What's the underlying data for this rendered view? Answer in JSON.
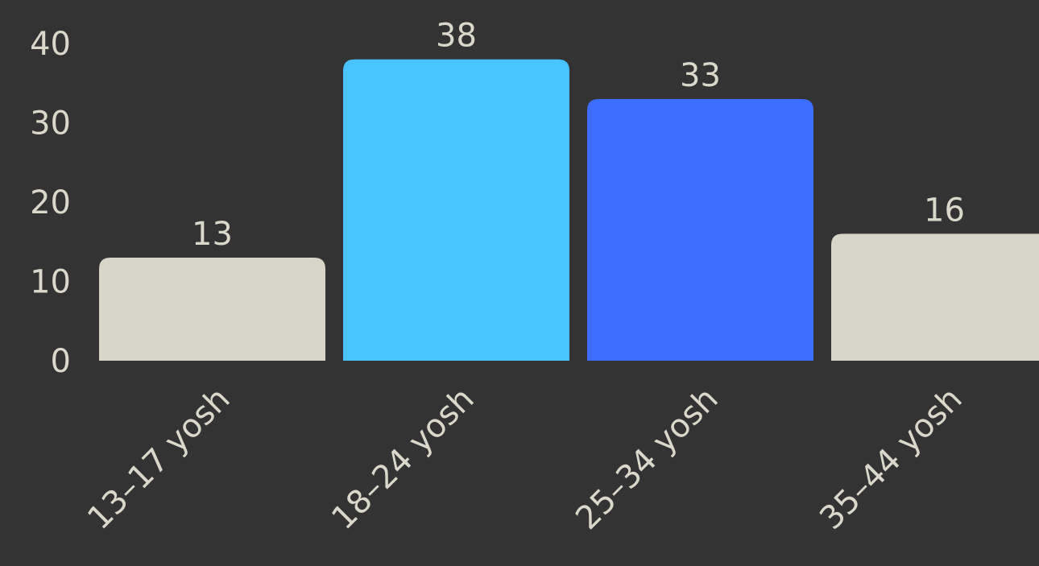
{
  "chart_data": {
    "type": "bar",
    "categories": [
      "13–17 yosh",
      "18–24 yosh",
      "25–34 yosh",
      "35–44 yosh"
    ],
    "values": [
      13,
      38,
      33,
      16
    ],
    "value_labels": [
      "13",
      "38",
      "33",
      "16"
    ],
    "bar_colors": [
      "#D8D6C9",
      "#48C3FF",
      "#3D6DFF",
      "#D8D6C9"
    ],
    "yticks": [
      0,
      10,
      20,
      30,
      40
    ],
    "ytick_labels": [
      "0",
      "10",
      "20",
      "30",
      "40"
    ],
    "ylim": [
      0,
      40
    ],
    "grid": false,
    "title": "",
    "xlabel": "",
    "ylabel": ""
  },
  "colors": {
    "background": "#333333",
    "text": "#DAD8CA"
  }
}
